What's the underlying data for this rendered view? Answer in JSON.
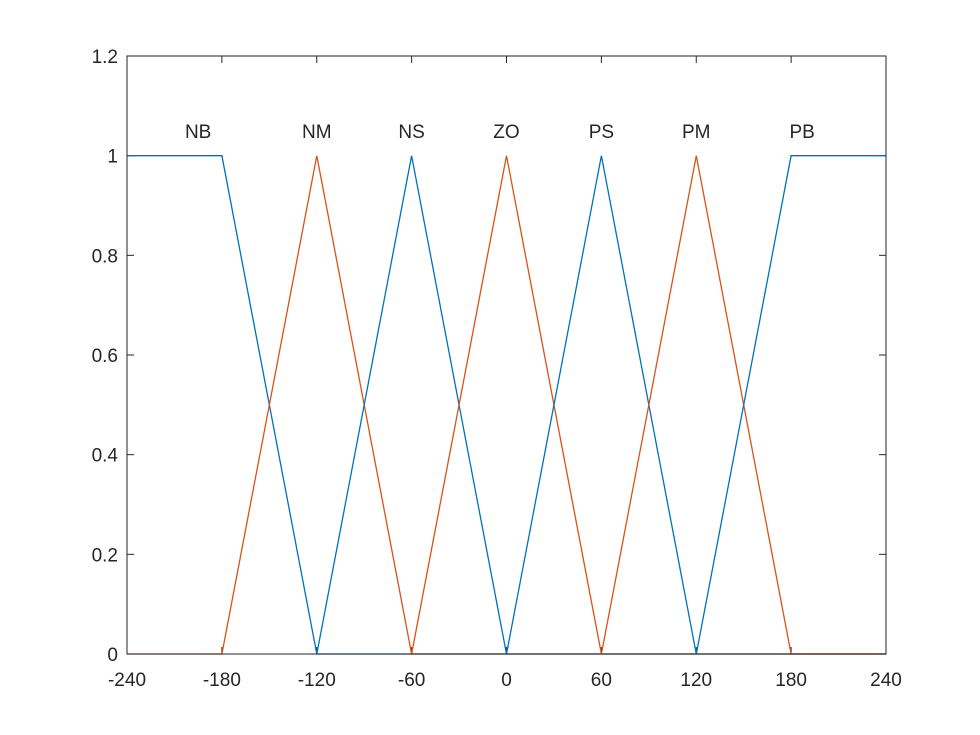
{
  "chart_data": {
    "type": "line",
    "title": "",
    "xlabel": "",
    "ylabel": "",
    "xlim": [
      -240,
      240
    ],
    "ylim": [
      0,
      1.2
    ],
    "grid": false,
    "x_ticks": [
      -240,
      -180,
      -120,
      -60,
      0,
      60,
      120,
      180,
      240
    ],
    "x_tick_labels": [
      "-240",
      "-180",
      "-120",
      "-60",
      "0",
      "60",
      "120",
      "180",
      "240"
    ],
    "y_ticks": [
      0,
      0.2,
      0.4,
      0.6,
      0.8,
      1,
      1.2
    ],
    "y_tick_labels": [
      "0",
      "0.2",
      "0.4",
      "0.6",
      "0.8",
      "1",
      "1.2"
    ],
    "colors": {
      "blue": "#0072BD",
      "orange": "#D95319"
    },
    "series": [
      {
        "name": "NB",
        "color": "#0072BD",
        "label_x": -195,
        "label_y": 1.05,
        "x": [
          -240,
          -180,
          -120,
          240
        ],
        "y": [
          1,
          1,
          0,
          0
        ]
      },
      {
        "name": "NM",
        "color": "#D95319",
        "label_x": -120,
        "label_y": 1.05,
        "x": [
          -240,
          -180,
          -120,
          -60,
          240
        ],
        "y": [
          0,
          0,
          1,
          0,
          0
        ]
      },
      {
        "name": "NS",
        "color": "#0072BD",
        "label_x": -60,
        "label_y": 1.05,
        "x": [
          -120,
          -60,
          0
        ],
        "y": [
          0,
          1,
          0
        ]
      },
      {
        "name": "ZO",
        "color": "#D95319",
        "label_x": 0,
        "label_y": 1.05,
        "x": [
          -60,
          0,
          60
        ],
        "y": [
          0,
          1,
          0
        ]
      },
      {
        "name": "PS",
        "color": "#0072BD",
        "label_x": 60,
        "label_y": 1.05,
        "x": [
          0,
          60,
          120
        ],
        "y": [
          0,
          1,
          0
        ]
      },
      {
        "name": "PM",
        "color": "#D95319",
        "label_x": 120,
        "label_y": 1.05,
        "x": [
          60,
          120,
          180,
          240
        ],
        "y": [
          0,
          1,
          0,
          0
        ]
      },
      {
        "name": "PB",
        "color": "#0072BD",
        "label_x": 187,
        "label_y": 1.05,
        "x": [
          120,
          180,
          240
        ],
        "y": [
          0,
          1,
          1
        ]
      }
    ]
  }
}
